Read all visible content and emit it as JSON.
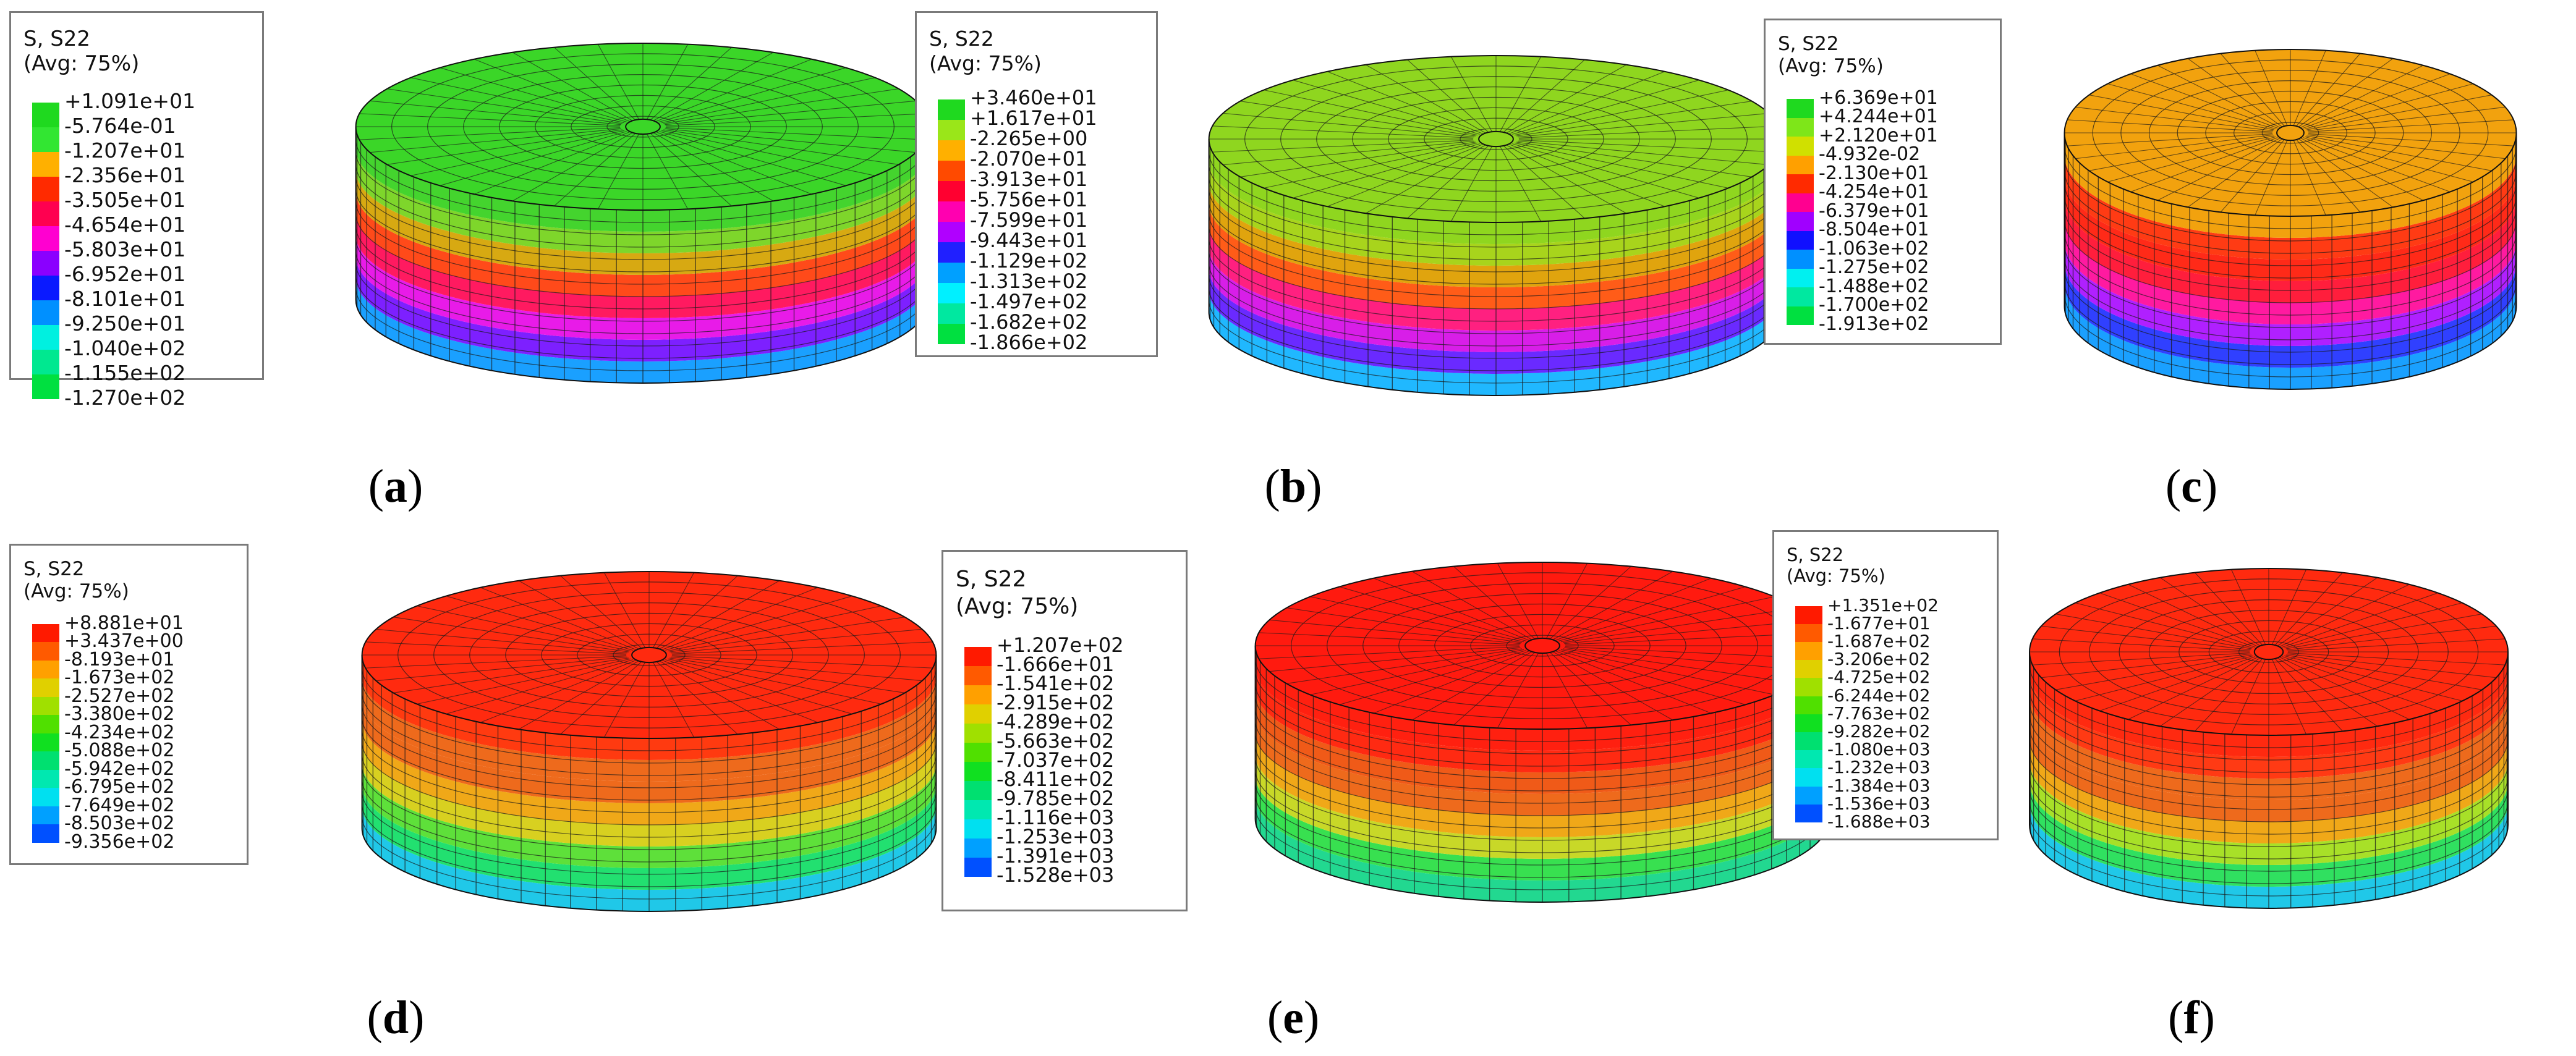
{
  "panels": [
    {
      "id": "a",
      "legend_title": "S, S22",
      "legend_avg": "(Avg: 75%)",
      "legend_values": [
        "+1.091e+01",
        "-5.764e-01",
        "-1.207e+01",
        "-2.356e+01",
        "-3.505e+01",
        "-4.654e+01",
        "-5.803e+01",
        "-6.952e+01",
        "-8.101e+01",
        "-9.250e+01",
        "-1.040e+02",
        "-1.155e+02",
        "-1.270e+02"
      ],
      "legend_colors": [
        "#1fd91f",
        "#32e632",
        "#ffb000",
        "#ff2a00",
        "#ff0050",
        "#ff00d0",
        "#8a00ff",
        "#0a1aff",
        "#0090ff",
        "#00f0e0",
        "#00e890",
        "#00e040"
      ],
      "top_color": "#3bd628",
      "side_bands": [
        "#44d42e",
        "#7ed62b",
        "#d7a912",
        "#ff4a1a",
        "#ff1a60",
        "#e81be8",
        "#7d20ff",
        "#1aa0ff"
      ],
      "caption_letter": "a"
    },
    {
      "id": "b",
      "legend_title": "S, S22",
      "legend_avg": "(Avg: 75%)",
      "legend_values": [
        "+3.460e+01",
        "+1.617e+01",
        "-2.265e+00",
        "-2.070e+01",
        "-3.913e+01",
        "-5.756e+01",
        "-7.599e+01",
        "-9.443e+01",
        "-1.129e+02",
        "-1.313e+02",
        "-1.497e+02",
        "-1.682e+02",
        "-1.866e+02"
      ],
      "legend_colors": [
        "#1fd91f",
        "#9ae619",
        "#ffb000",
        "#ff4a00",
        "#ff0030",
        "#ff00b0",
        "#b000ff",
        "#2020ff",
        "#00a0ff",
        "#00f0ff",
        "#00e8a0",
        "#00e040"
      ],
      "top_color": "#8fd61f",
      "side_bands": [
        "#8fd61f",
        "#a8d41c",
        "#e0a40e",
        "#ff5c18",
        "#ff2080",
        "#d81ee8",
        "#6a2aff",
        "#20b8ff"
      ],
      "caption_letter": "b"
    },
    {
      "id": "c",
      "legend_title": "S, S22",
      "legend_avg": "(Avg: 75%)",
      "legend_values": [
        "+6.369e+01",
        "+4.244e+01",
        "+2.120e+01",
        "-4.932e-02",
        "-2.130e+01",
        "-4.254e+01",
        "-6.379e+01",
        "-8.504e+01",
        "-1.063e+02",
        "-1.275e+02",
        "-1.488e+02",
        "-1.700e+02",
        "-1.913e+02"
      ],
      "legend_colors": [
        "#1fd91f",
        "#7ee619",
        "#d0e000",
        "#ffa000",
        "#ff2a00",
        "#ff0090",
        "#a000ff",
        "#1010ff",
        "#0090ff",
        "#00f0f0",
        "#00e8a0",
        "#00e040"
      ],
      "top_color": "#f2a20e",
      "side_bands": [
        "#f2a20e",
        "#ff3b14",
        "#ff2a18",
        "#ff1e3c",
        "#ff1aa0",
        "#b020ff",
        "#3040ff",
        "#1aa0ff"
      ],
      "caption_letter": "c"
    },
    {
      "id": "d",
      "legend_title": "S, S22",
      "legend_avg": "(Avg: 75%)",
      "legend_values": [
        "+8.881e+01",
        "+3.437e+00",
        "-8.193e+01",
        "-1.673e+02",
        "-2.527e+02",
        "-3.380e+02",
        "-4.234e+02",
        "-5.088e+02",
        "-5.942e+02",
        "-6.795e+02",
        "-7.649e+02",
        "-8.503e+02",
        "-9.356e+02"
      ],
      "legend_colors": [
        "#ff1a00",
        "#ff5a00",
        "#ffa000",
        "#e0d000",
        "#a0e000",
        "#50e000",
        "#10e020",
        "#00e070",
        "#00e8b0",
        "#00e0f0",
        "#00a0ff",
        "#0050ff"
      ],
      "top_color": "#ff2a0f",
      "side_bands": [
        "#ff3a10",
        "#ee6a1c",
        "#ee6a1c",
        "#f0a818",
        "#d8d020",
        "#5ee03a",
        "#22e070",
        "#20c8e8"
      ],
      "caption_letter": "d"
    },
    {
      "id": "e",
      "legend_title": "S, S22",
      "legend_avg": "(Avg: 75%)",
      "legend_values": [
        "+1.207e+02",
        "-1.666e+01",
        "-1.541e+02",
        "-2.915e+02",
        "-4.289e+02",
        "-5.663e+02",
        "-7.037e+02",
        "-8.411e+02",
        "-9.785e+02",
        "-1.116e+03",
        "-1.253e+03",
        "-1.391e+03",
        "-1.528e+03"
      ],
      "legend_colors": [
        "#ff1a00",
        "#ff5a00",
        "#ffa000",
        "#e0d000",
        "#a0e000",
        "#50e000",
        "#10e020",
        "#00e070",
        "#00e8b0",
        "#00e0f0",
        "#00a0ff",
        "#0050ff"
      ],
      "top_color": "#ff1a0f",
      "side_bands": [
        "#ff2010",
        "#ff2a12",
        "#f05a18",
        "#ee6a1c",
        "#f0a818",
        "#c8d828",
        "#38e050",
        "#22d890"
      ],
      "caption_letter": "e"
    },
    {
      "id": "f",
      "legend_title": "S, S22",
      "legend_avg": "(Avg: 75%)",
      "legend_values": [
        "+1.351e+02",
        "-1.677e+01",
        "-1.687e+02",
        "-3.206e+02",
        "-4.725e+02",
        "-6.244e+02",
        "-7.763e+02",
        "-9.282e+02",
        "-1.080e+03",
        "-1.232e+03",
        "-1.384e+03",
        "-1.536e+03",
        "-1.688e+03"
      ],
      "legend_colors": [
        "#ff1a00",
        "#ff5a00",
        "#ffa000",
        "#e0d000",
        "#a0e000",
        "#50e000",
        "#10e020",
        "#00e070",
        "#00e8b0",
        "#00e0f0",
        "#00a0ff",
        "#0050ff"
      ],
      "top_color": "#ff2a0f",
      "side_bands": [
        "#ff2a10",
        "#ff3a14",
        "#ee6a1c",
        "#ee6a1c",
        "#f0a818",
        "#a8e028",
        "#30e060",
        "#20c8e8"
      ],
      "caption_letter": "f"
    }
  ]
}
